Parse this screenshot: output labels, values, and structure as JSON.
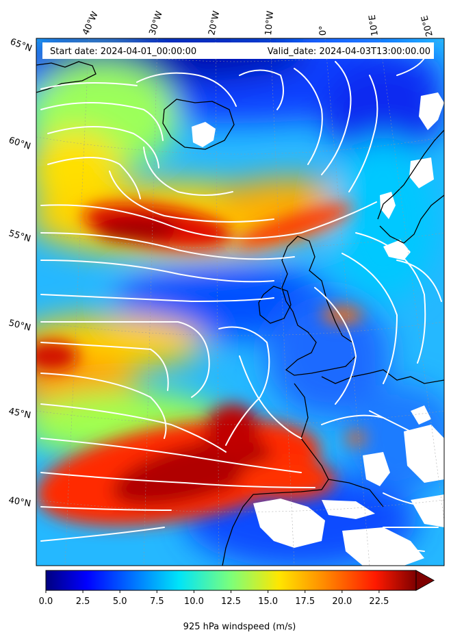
{
  "header": {
    "start_date": "Start date: 2024-04-01_00:00:00",
    "valid_date": "Valid_date: 2024-04-03T13:00:00.00"
  },
  "longitude_labels": [
    "40°W",
    "30°W",
    "20°W",
    "10°W",
    "0°",
    "10°E",
    "20°E"
  ],
  "latitude_labels": [
    "65°N",
    "60°N",
    "55°N",
    "50°N",
    "45°N",
    "40°N"
  ],
  "colorbar": {
    "min": 0,
    "max": 25,
    "extend": "max",
    "colormap": "jet",
    "ticks": [
      "0.0",
      "2.5",
      "5.0",
      "7.5",
      "10.0",
      "12.5",
      "15.0",
      "17.5",
      "20.0",
      "22.5"
    ],
    "label": "925 hPa windspeed (m/s)"
  },
  "colors": {
    "streamline": "#ffffff",
    "coastline": "#000000",
    "gridline": "#999999"
  }
}
